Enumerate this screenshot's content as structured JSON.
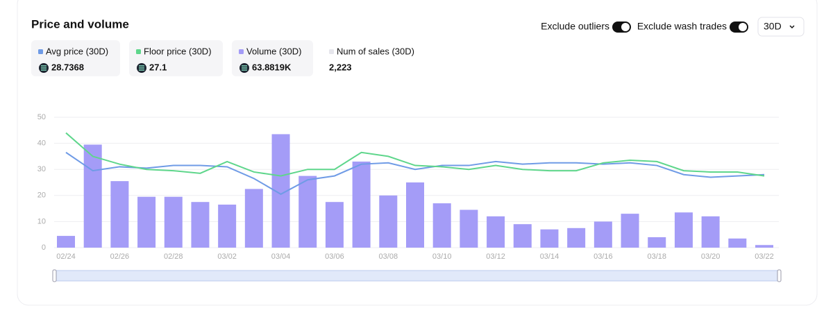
{
  "header": {
    "title": "Price and volume",
    "toggles": [
      "Exclude outliers",
      "Exclude wash trades"
    ],
    "period": "30D"
  },
  "extra_stat": {
    "name": "Num of sales (30D)",
    "total": "2,223",
    "color": "#e6e6ec"
  },
  "chart_data": {
    "type": "barline",
    "categories": [
      "02/24",
      null,
      "02/26",
      null,
      "02/28",
      null,
      "03/02",
      null,
      "03/04",
      null,
      "03/06",
      null,
      "03/08",
      null,
      "03/10",
      null,
      "03/12",
      null,
      "03/14",
      null,
      "03/16",
      null,
      "03/18",
      null,
      "03/20",
      null,
      "03/22"
    ],
    "series": [
      {
        "name": "Avg price (30D)",
        "total": "28.7368",
        "kind": "line",
        "color": "#6f9be6",
        "values": [
          36.5,
          29.5,
          31,
          30.5,
          31.5,
          31.5,
          31,
          26.5,
          20.5,
          26,
          27.5,
          32,
          32.5,
          30,
          31.5,
          31.5,
          33,
          32,
          32.5,
          32.5,
          32,
          32.5,
          31.5,
          28,
          27,
          27.5,
          28
        ]
      },
      {
        "name": "Floor price (30D)",
        "total": "27.1",
        "kind": "line",
        "color": "#5ed68b",
        "values": [
          44,
          35,
          32,
          30,
          29.5,
          28.5,
          33,
          29,
          27.5,
          30,
          30,
          36.5,
          35,
          31.5,
          31,
          30,
          31.5,
          30,
          29.5,
          29.5,
          32.5,
          33.5,
          33,
          29.5,
          29,
          29,
          27.5
        ]
      },
      {
        "name": "Volume (30D)",
        "total": "63.8819K",
        "kind": "bar",
        "color": "#a49cf7",
        "values": [
          4.5,
          39.5,
          25.5,
          19.5,
          19.5,
          17.5,
          16.5,
          22.5,
          43.5,
          27.5,
          17.5,
          33,
          20,
          25,
          17,
          14.5,
          12,
          9,
          7,
          7.5,
          10,
          13,
          4,
          13.5,
          12,
          3.5,
          1
        ]
      }
    ],
    "ylim": [
      0,
      50
    ],
    "yticks": [
      0,
      10,
      20,
      30,
      40,
      50
    ],
    "grid": true
  }
}
